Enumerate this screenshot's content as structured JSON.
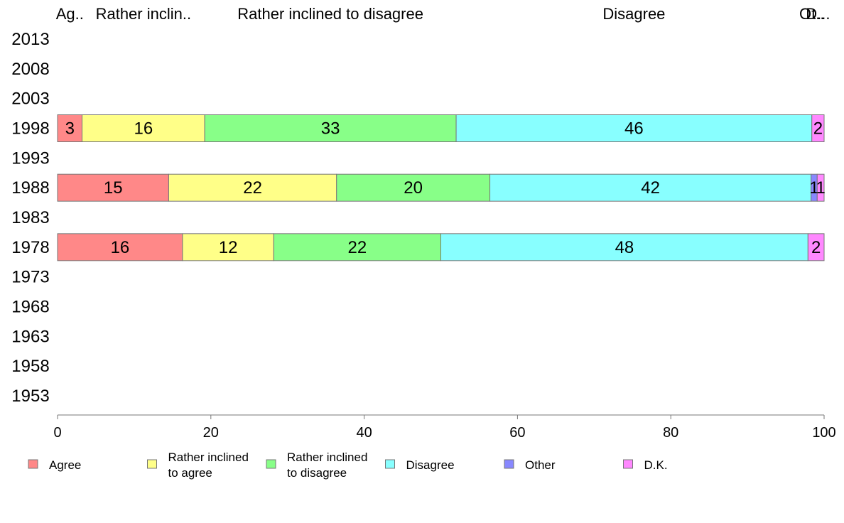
{
  "chart_data": {
    "type": "bar",
    "orientation": "horizontal",
    "stacked": true,
    "title": "",
    "xlabel": "",
    "ylabel": "",
    "xlim": [
      0,
      100
    ],
    "x_ticks": [
      "0",
      "20",
      "40",
      "60",
      "80",
      "100"
    ],
    "grid": false,
    "legend_position": "bottom",
    "categories": [
      "2013",
      "2008",
      "2003",
      "1998",
      "1993",
      "1988",
      "1983",
      "1978",
      "1973",
      "1968",
      "1963",
      "1958",
      "1953"
    ],
    "header_labels": [
      "Ag..",
      "Rather inclin..",
      "Rather inclined to disagree",
      "Disagree",
      "Ot..",
      "D..."
    ],
    "series": [
      {
        "name": "Agree",
        "legend_label": [
          "Agree"
        ],
        "color": "#ff8888",
        "values": [
          null,
          null,
          null,
          3,
          null,
          15,
          null,
          16,
          null,
          null,
          null,
          null,
          null
        ]
      },
      {
        "name": "Rather inclined to agree",
        "legend_label": [
          "Rather inclined",
          "to agree"
        ],
        "color": "#ffff88",
        "values": [
          null,
          null,
          null,
          16,
          null,
          22,
          null,
          12,
          null,
          null,
          null,
          null,
          null
        ]
      },
      {
        "name": "Rather inclined to disagree",
        "legend_label": [
          "Rather inclined",
          "to disagree"
        ],
        "color": "#88ff88",
        "values": [
          null,
          null,
          null,
          33,
          null,
          20,
          null,
          22,
          null,
          null,
          null,
          null,
          null
        ]
      },
      {
        "name": "Disagree",
        "legend_label": [
          "Disagree"
        ],
        "color": "#88ffff",
        "values": [
          null,
          null,
          null,
          46,
          null,
          42,
          null,
          48,
          null,
          null,
          null,
          null,
          null
        ]
      },
      {
        "name": "Other",
        "legend_label": [
          "Other"
        ],
        "color": "#8888ff",
        "values": [
          null,
          null,
          null,
          0,
          null,
          1,
          null,
          0,
          null,
          null,
          null,
          null,
          null
        ]
      },
      {
        "name": "D.K.",
        "legend_label": [
          "D.K."
        ],
        "color": "#ff88ff",
        "values": [
          null,
          null,
          null,
          2,
          null,
          1,
          null,
          2,
          null,
          null,
          null,
          null,
          null
        ]
      }
    ],
    "segment_bounds": {
      "1998": [
        0,
        3.2,
        19.2,
        52.0,
        98.4,
        98.4,
        100
      ],
      "1988": [
        0,
        14.5,
        36.4,
        56.4,
        98.3,
        99.1,
        100
      ],
      "1978": [
        0,
        16.3,
        28.2,
        50.0,
        97.9,
        97.9,
        100
      ]
    }
  }
}
